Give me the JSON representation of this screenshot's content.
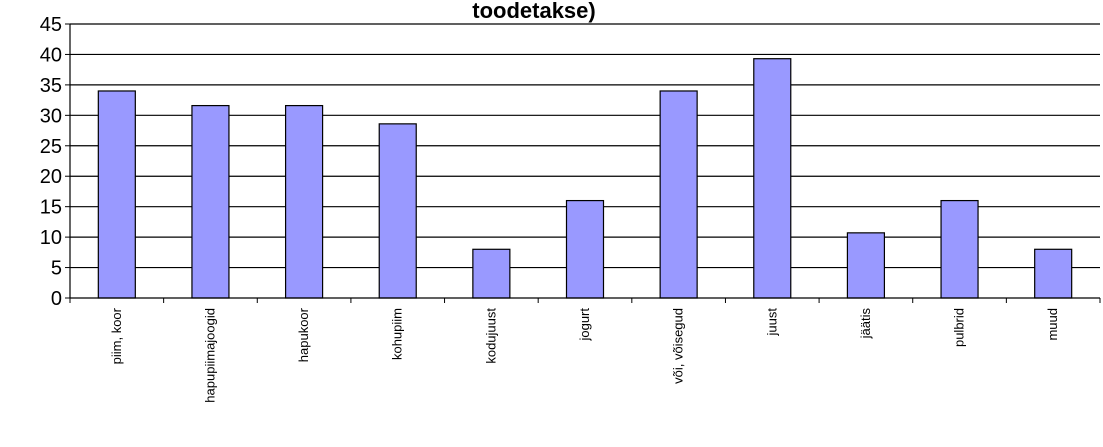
{
  "chart_data": {
    "type": "bar",
    "title": "toodetakse)",
    "xlabel": "",
    "ylabel": "",
    "categories": [
      "piim, koor",
      "hapupiimajoogid",
      "hapukoor",
      "kohupiim",
      "kodujuust",
      "jogurt",
      "või, võisegud",
      "juust",
      "jäätis",
      "pulbrid",
      "muud"
    ],
    "values": [
      34,
      31.6,
      31.6,
      28.6,
      8,
      16,
      34,
      39.3,
      10.7,
      16,
      8
    ],
    "ylim": [
      0,
      45
    ],
    "yticks": [
      "0",
      "5",
      "10",
      "15",
      "20",
      "25",
      "30",
      "35",
      "40",
      "45"
    ],
    "grid": true,
    "bar_color": "#9999ff",
    "bar_edge_color": "#000000"
  }
}
